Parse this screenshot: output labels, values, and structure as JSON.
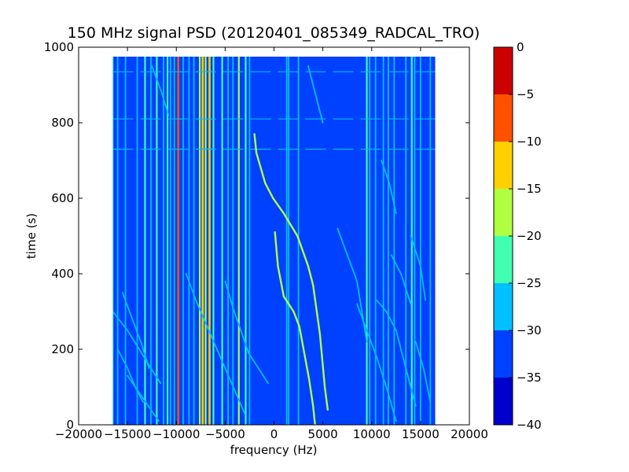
{
  "chart_data": {
    "type": "heatmap",
    "title": "150 MHz signal PSD (20120401_085349_RADCAL_TRO)",
    "xlabel": "frequency (Hz)",
    "ylabel": "time (s)",
    "xlim": [
      -20000,
      20000
    ],
    "ylim": [
      0,
      1000
    ],
    "xticks": [
      -20000,
      -15000,
      -10000,
      -5000,
      0,
      5000,
      10000,
      15000,
      20000
    ],
    "xtick_labels": [
      "−20000",
      "−15000",
      "−10000",
      "−5000",
      "0",
      "5000",
      "10000",
      "15000",
      "20000"
    ],
    "yticks": [
      0,
      200,
      400,
      600,
      800,
      1000
    ],
    "ytick_labels": [
      "0",
      "200",
      "400",
      "600",
      "800",
      "1000"
    ],
    "data_extent": {
      "x": [
        -16500,
        16500
      ],
      "y": [
        0,
        975
      ]
    },
    "background_level": -30,
    "colorbar": {
      "levels": [
        -40,
        -35,
        -30,
        -25,
        -20,
        -15,
        -10,
        -5,
        0
      ],
      "tick_labels": [
        "−40",
        "−35",
        "−30",
        "−25",
        "−20",
        "−15",
        "−10",
        "−5",
        "0"
      ],
      "colors": [
        "#0000cc",
        "#0040ff",
        "#00c0ff",
        "#40ffb0",
        "#b0ff40",
        "#ffd000",
        "#ff5000",
        "#cc0000"
      ]
    },
    "vertical_lines": [
      {
        "f": -16500,
        "level": -25
      },
      {
        "f": -16000,
        "level": -25
      },
      {
        "f": -15200,
        "level": -25
      },
      {
        "f": -14000,
        "level": -25
      },
      {
        "f": -13200,
        "level": -20
      },
      {
        "f": -12600,
        "level": -25
      },
      {
        "f": -12000,
        "level": -20
      },
      {
        "f": -11300,
        "level": -25
      },
      {
        "f": -10900,
        "level": -20
      },
      {
        "f": -10600,
        "level": -25
      },
      {
        "f": -10200,
        "level": -25
      },
      {
        "f": -9800,
        "level": -5
      },
      {
        "f": -9300,
        "level": -25
      },
      {
        "f": -8700,
        "level": -25
      },
      {
        "f": -8200,
        "level": -25
      },
      {
        "f": -7600,
        "level": -15
      },
      {
        "f": -7300,
        "level": -10
      },
      {
        "f": -7000,
        "level": -15
      },
      {
        "f": -6600,
        "level": -10
      },
      {
        "f": -6200,
        "level": -20
      },
      {
        "f": -5300,
        "level": -20
      },
      {
        "f": -4700,
        "level": -25
      },
      {
        "f": -4200,
        "level": -25
      },
      {
        "f": -3600,
        "level": -15
      },
      {
        "f": -2900,
        "level": -20
      },
      {
        "f": -2500,
        "level": -25
      },
      {
        "f": 1300,
        "level": -25
      },
      {
        "f": 1500,
        "level": -25
      },
      {
        "f": 2500,
        "level": -25
      },
      {
        "f": 9500,
        "level": -20
      },
      {
        "f": 9800,
        "level": -25
      },
      {
        "f": 10400,
        "level": -25
      },
      {
        "f": 11200,
        "level": -25
      },
      {
        "f": 11700,
        "level": -25
      },
      {
        "f": 12300,
        "level": -25
      },
      {
        "f": 13500,
        "level": -25
      },
      {
        "f": 14100,
        "level": -20
      },
      {
        "f": 14400,
        "level": -25
      },
      {
        "f": 15000,
        "level": -25
      },
      {
        "f": 16000,
        "level": -25
      }
    ],
    "horizontal_lines": [
      {
        "t": 935,
        "level": -25
      },
      {
        "t": 810,
        "level": -25
      },
      {
        "t": 730,
        "level": -25
      }
    ],
    "curves": [
      {
        "level": -15,
        "points": [
          [
            -2000,
            770
          ],
          [
            -1800,
            720
          ],
          [
            -900,
            640
          ],
          [
            -100,
            600
          ],
          [
            1000,
            560
          ],
          [
            2400,
            500
          ],
          [
            3500,
            420
          ],
          [
            4000,
            370
          ],
          [
            4700,
            240
          ],
          [
            5200,
            100
          ],
          [
            5500,
            40
          ]
        ]
      },
      {
        "level": -15,
        "points": [
          [
            100,
            510
          ],
          [
            400,
            420
          ],
          [
            1000,
            340
          ],
          [
            2000,
            300
          ],
          [
            2600,
            260
          ],
          [
            3100,
            190
          ],
          [
            3600,
            120
          ],
          [
            4000,
            50
          ],
          [
            4200,
            0
          ]
        ]
      },
      {
        "level": -25,
        "points": [
          [
            -5000,
            380
          ],
          [
            -4200,
            310
          ],
          [
            -3400,
            250
          ],
          [
            -2600,
            190
          ],
          [
            -1600,
            150
          ],
          [
            -600,
            110
          ]
        ]
      },
      {
        "level": -25,
        "points": [
          [
            -9000,
            400
          ],
          [
            -8000,
            330
          ],
          [
            -7000,
            270
          ],
          [
            -6000,
            210
          ],
          [
            -5000,
            150
          ],
          [
            -4000,
            90
          ],
          [
            -3000,
            30
          ]
        ]
      },
      {
        "level": -25,
        "points": [
          [
            -16500,
            300
          ],
          [
            -15000,
            250
          ],
          [
            -13800,
            200
          ],
          [
            -12600,
            150
          ],
          [
            -11600,
            110
          ]
        ]
      },
      {
        "level": -25,
        "points": [
          [
            -15000,
            130
          ],
          [
            -14200,
            100
          ],
          [
            -13400,
            70
          ],
          [
            -12600,
            40
          ],
          [
            -11800,
            10
          ]
        ]
      },
      {
        "level": -25,
        "points": [
          [
            -16000,
            200
          ],
          [
            -15000,
            150
          ],
          [
            -14200,
            100
          ],
          [
            -13400,
            60
          ]
        ]
      },
      {
        "level": -25,
        "points": [
          [
            -15500,
            350
          ],
          [
            -14500,
            280
          ],
          [
            -13500,
            210
          ],
          [
            -12800,
            150
          ]
        ]
      },
      {
        "level": -25,
        "points": [
          [
            -12500,
            950
          ],
          [
            -11500,
            880
          ],
          [
            -10800,
            820
          ]
        ]
      },
      {
        "level": -25,
        "points": [
          [
            3500,
            950
          ],
          [
            4200,
            880
          ],
          [
            5000,
            800
          ]
        ]
      },
      {
        "level": -25,
        "points": [
          [
            6500,
            520
          ],
          [
            7500,
            450
          ],
          [
            8500,
            380
          ],
          [
            9000,
            300
          ],
          [
            9500,
            220
          ]
        ]
      },
      {
        "level": -25,
        "points": [
          [
            10500,
            330
          ],
          [
            11500,
            300
          ],
          [
            12500,
            250
          ],
          [
            13500,
            150
          ],
          [
            14500,
            50
          ]
        ]
      },
      {
        "level": -25,
        "points": [
          [
            8500,
            320
          ],
          [
            9500,
            250
          ],
          [
            10500,
            180
          ],
          [
            11500,
            100
          ],
          [
            12500,
            10
          ]
        ]
      },
      {
        "level": -25,
        "points": [
          [
            14000,
            500
          ],
          [
            15000,
            420
          ],
          [
            15500,
            330
          ]
        ]
      },
      {
        "level": -25,
        "points": [
          [
            11000,
            700
          ],
          [
            11800,
            640
          ],
          [
            12500,
            560
          ]
        ]
      },
      {
        "level": -25,
        "points": [
          [
            12000,
            450
          ],
          [
            13000,
            400
          ],
          [
            14000,
            320
          ]
        ]
      },
      {
        "level": -25,
        "points": [
          [
            14500,
            220
          ],
          [
            15300,
            150
          ],
          [
            16000,
            60
          ]
        ]
      }
    ]
  }
}
